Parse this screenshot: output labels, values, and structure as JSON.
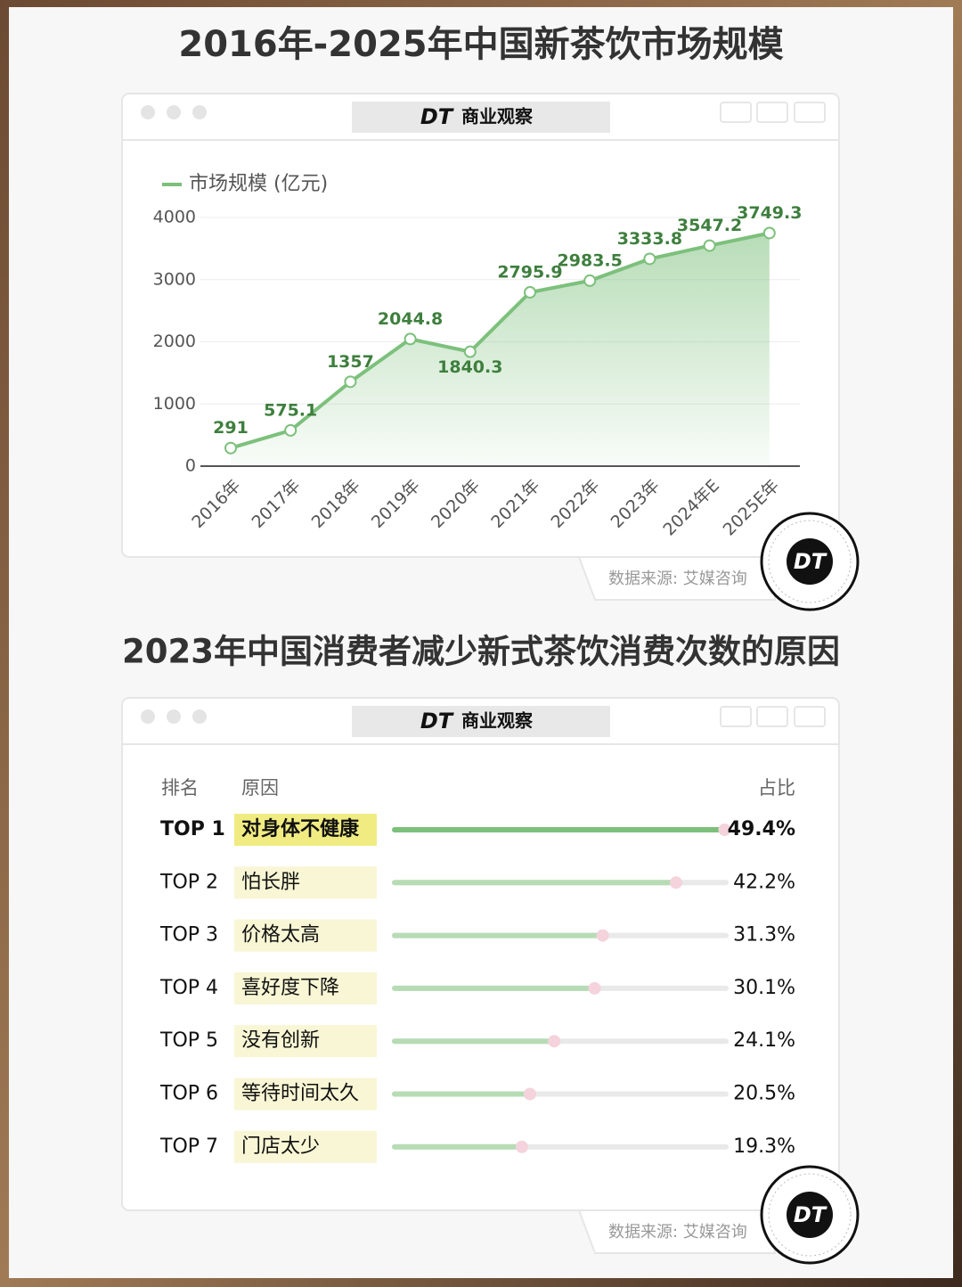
{
  "chart_data": [
    {
      "type": "area",
      "title": "2016年-2025年中国新茶饮市场规模",
      "brand_logo": "DT",
      "brand_name": "商业观察",
      "source": "数据来源: 艾媒咨询",
      "categories": [
        "2016年",
        "2017年",
        "2018年",
        "2019年",
        "2020年",
        "2021年",
        "2022年",
        "2023年",
        "2024年E",
        "2025E年"
      ],
      "series": [
        {
          "name": "市场规模 (亿元)",
          "color": "#7cc07c",
          "values": [
            291,
            575.1,
            1357,
            2044.8,
            1840.3,
            2795.9,
            2983.5,
            3333.8,
            3547.2,
            3749.3
          ]
        }
      ],
      "ylim": [
        0,
        4000
      ],
      "yticks": [
        0,
        1000,
        2000,
        3000,
        4000
      ],
      "grid": true
    },
    {
      "type": "bar",
      "title": "2023年中国消费者减少新式茶饮消费次数的原因",
      "brand_logo": "DT",
      "brand_name": "商业观察",
      "source": "数据来源: 艾媒咨询",
      "headers": [
        "排名",
        "原因",
        "占比"
      ],
      "ranks": [
        "TOP 1",
        "TOP 2",
        "TOP 3",
        "TOP 4",
        "TOP 5",
        "TOP 6",
        "TOP 7"
      ],
      "categories": [
        "对身体不健康",
        "怕长胖",
        "价格太高",
        "喜好度下降",
        "没有创新",
        "等待时间太久",
        "门店太少"
      ],
      "values": [
        49.4,
        42.2,
        31.3,
        30.1,
        24.1,
        20.5,
        19.3
      ],
      "value_labels": [
        "49.4%",
        "42.2%",
        "31.3%",
        "30.1%",
        "24.1%",
        "20.5%",
        "19.3%"
      ],
      "xlim": [
        0,
        50
      ],
      "color": "#b7dcb5",
      "highlight_color": "#7cc07c"
    }
  ]
}
